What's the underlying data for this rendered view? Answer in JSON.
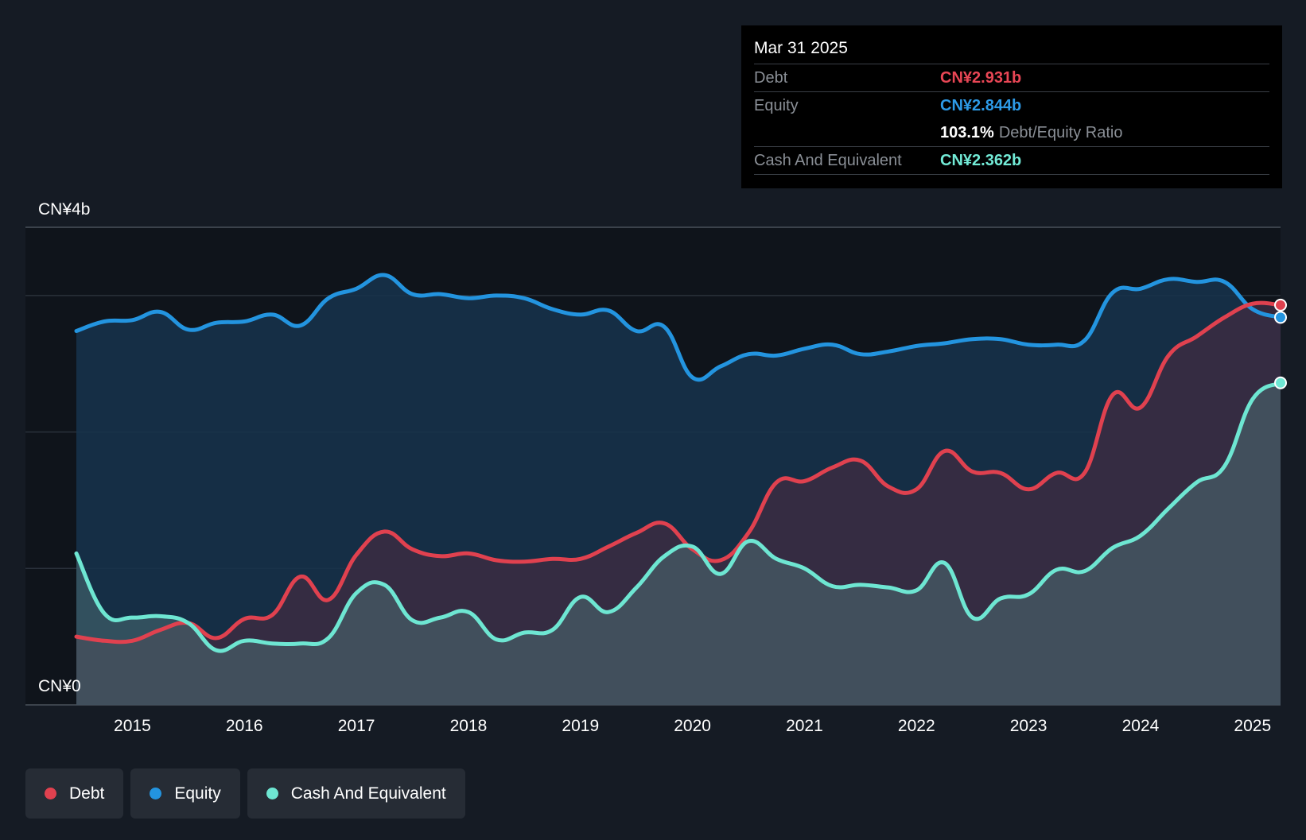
{
  "colors": {
    "background": "#151b24",
    "plot_background": "#0f141b",
    "debt": "#e0414f",
    "equity": "#2394df",
    "cash": "#6ee6d2",
    "grid": "#2a313b"
  },
  "tooltip": {
    "date": "Mar 31 2025",
    "rows": [
      {
        "label": "Debt",
        "value": "CN¥2.931b",
        "color": "#e84655"
      },
      {
        "label": "Equity",
        "value": "CN¥2.844b",
        "color": "#2d9ae6"
      },
      {
        "ratio_value": "103.1%",
        "ratio_label": "Debt/Equity Ratio"
      },
      {
        "label": "Cash And Equivalent",
        "value": "CN¥2.362b",
        "color": "#72ead6"
      }
    ]
  },
  "legend": [
    {
      "name": "Debt",
      "color": "#e0414f",
      "icon": "dot-icon"
    },
    {
      "name": "Equity",
      "color": "#2394df",
      "icon": "dot-icon"
    },
    {
      "name": "Cash And Equivalent",
      "color": "#6ee6d2",
      "icon": "dot-icon"
    }
  ],
  "chart_data": {
    "type": "area",
    "title": "",
    "xlabel": "",
    "ylabel": "",
    "y_top_label": "CN¥4b",
    "y_bottom_label": "CN¥0",
    "ylim": [
      0,
      3.5
    ],
    "xlim": [
      2014.5,
      2025.25
    ],
    "grid": true,
    "legend_position": "bottom-left",
    "x_ticks": [
      2015,
      2016,
      2017,
      2018,
      2019,
      2020,
      2021,
      2022,
      2023,
      2024,
      2025
    ],
    "x_tick_labels": [
      "2015",
      "2016",
      "2017",
      "2018",
      "2019",
      "2020",
      "2021",
      "2022",
      "2023",
      "2024",
      "2025"
    ],
    "series": [
      {
        "name": "Debt",
        "x": [
          2014.5,
          2014.75,
          2015.0,
          2015.25,
          2015.5,
          2015.75,
          2016.0,
          2016.25,
          2016.5,
          2016.75,
          2017.0,
          2017.25,
          2017.5,
          2017.75,
          2018.0,
          2018.25,
          2018.5,
          2018.75,
          2019.0,
          2019.25,
          2019.5,
          2019.75,
          2020.0,
          2020.25,
          2020.5,
          2020.75,
          2021.0,
          2021.25,
          2021.5,
          2021.75,
          2022.0,
          2022.25,
          2022.5,
          2022.75,
          2023.0,
          2023.25,
          2023.5,
          2023.75,
          2024.0,
          2024.25,
          2024.5,
          2024.75,
          2025.0,
          2025.25
        ],
        "values": [
          0.5,
          0.47,
          0.47,
          0.55,
          0.6,
          0.49,
          0.63,
          0.66,
          0.94,
          0.77,
          1.1,
          1.27,
          1.14,
          1.09,
          1.11,
          1.06,
          1.05,
          1.07,
          1.07,
          1.16,
          1.26,
          1.33,
          1.14,
          1.06,
          1.26,
          1.63,
          1.64,
          1.74,
          1.79,
          1.6,
          1.58,
          1.86,
          1.71,
          1.7,
          1.58,
          1.7,
          1.7,
          2.27,
          2.18,
          2.56,
          2.7,
          2.84,
          2.94,
          2.93
        ]
      },
      {
        "name": "Equity",
        "x": [
          2014.5,
          2014.75,
          2015.0,
          2015.25,
          2015.5,
          2015.75,
          2016.0,
          2016.25,
          2016.5,
          2016.75,
          2017.0,
          2017.25,
          2017.5,
          2017.75,
          2018.0,
          2018.25,
          2018.5,
          2018.75,
          2019.0,
          2019.25,
          2019.5,
          2019.75,
          2020.0,
          2020.25,
          2020.5,
          2020.75,
          2021.0,
          2021.25,
          2021.5,
          2021.75,
          2022.0,
          2022.25,
          2022.5,
          2022.75,
          2023.0,
          2023.25,
          2023.5,
          2023.75,
          2024.0,
          2024.25,
          2024.5,
          2024.75,
          2025.0,
          2025.25
        ],
        "values": [
          2.74,
          2.81,
          2.82,
          2.88,
          2.75,
          2.8,
          2.81,
          2.86,
          2.78,
          2.98,
          3.05,
          3.15,
          3.01,
          3.01,
          2.98,
          3.0,
          2.98,
          2.9,
          2.86,
          2.89,
          2.74,
          2.77,
          2.4,
          2.48,
          2.57,
          2.56,
          2.61,
          2.64,
          2.57,
          2.59,
          2.63,
          2.65,
          2.68,
          2.68,
          2.64,
          2.64,
          2.67,
          3.02,
          3.05,
          3.12,
          3.1,
          3.1,
          2.9,
          2.84
        ]
      },
      {
        "name": "Cash And Equivalent",
        "x": [
          2014.5,
          2014.75,
          2015.0,
          2015.25,
          2015.5,
          2015.75,
          2016.0,
          2016.25,
          2016.5,
          2016.75,
          2017.0,
          2017.25,
          2017.5,
          2017.75,
          2018.0,
          2018.25,
          2018.5,
          2018.75,
          2019.0,
          2019.25,
          2019.5,
          2019.75,
          2020.0,
          2020.25,
          2020.5,
          2020.75,
          2021.0,
          2021.25,
          2021.5,
          2021.75,
          2022.0,
          2022.25,
          2022.5,
          2022.75,
          2023.0,
          2023.25,
          2023.5,
          2023.75,
          2024.0,
          2024.25,
          2024.5,
          2024.75,
          2025.0,
          2025.25
        ],
        "values": [
          1.11,
          0.67,
          0.64,
          0.65,
          0.6,
          0.4,
          0.47,
          0.45,
          0.45,
          0.49,
          0.82,
          0.88,
          0.62,
          0.64,
          0.68,
          0.48,
          0.53,
          0.55,
          0.79,
          0.68,
          0.86,
          1.09,
          1.16,
          0.96,
          1.2,
          1.07,
          1.0,
          0.87,
          0.88,
          0.86,
          0.84,
          1.04,
          0.64,
          0.78,
          0.81,
          0.99,
          0.98,
          1.15,
          1.24,
          1.44,
          1.63,
          1.75,
          2.24,
          2.36
        ]
      }
    ]
  }
}
